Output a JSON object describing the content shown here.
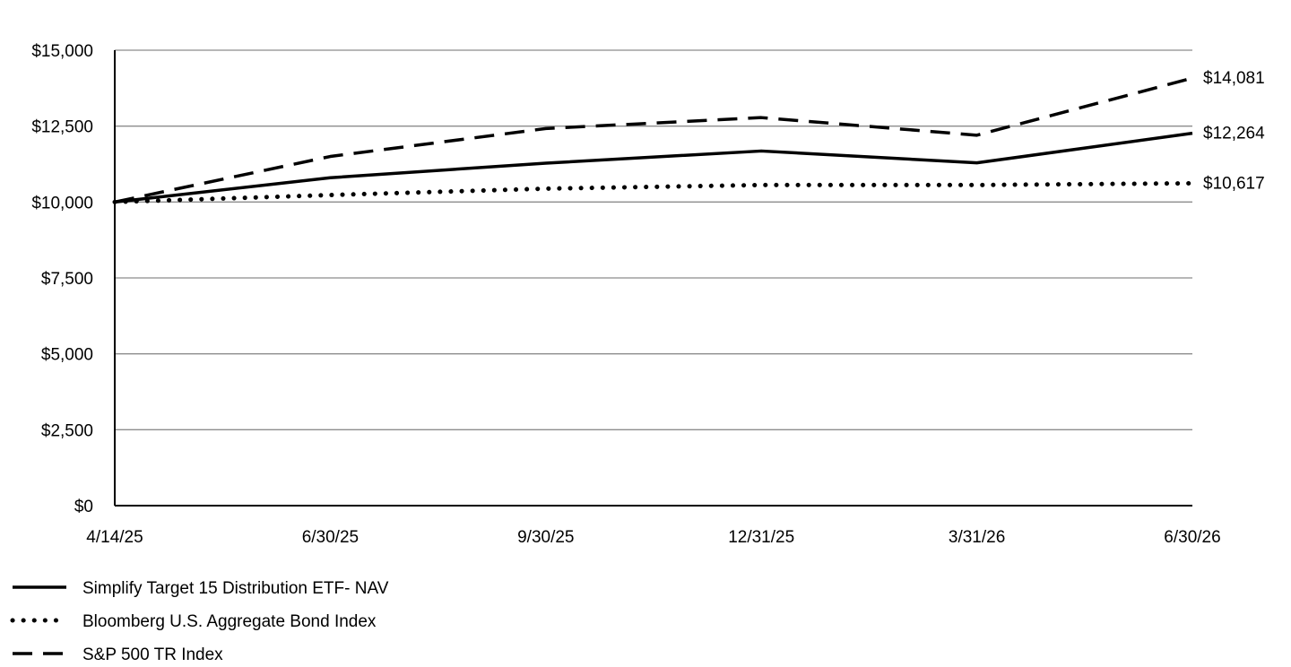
{
  "chart_data": {
    "type": "line",
    "title": "",
    "xlabel": "",
    "ylabel": "",
    "x": [
      "4/14/25",
      "6/30/25",
      "9/30/25",
      "12/31/25",
      "3/31/26",
      "6/30/26"
    ],
    "ylim": [
      0,
      15000
    ],
    "yticks": [
      0,
      2500,
      5000,
      7500,
      10000,
      12500,
      15000
    ],
    "ytick_labels": [
      "$0",
      "$2,500",
      "$5,000",
      "$7,500",
      "$10,000",
      "$12,500",
      "$15,000"
    ],
    "grid": true,
    "legend_position": "bottom-left",
    "series": [
      {
        "name": "Simplify Target 15 Distribution ETF- NAV",
        "style": "solid",
        "color": "#000000",
        "values": [
          10000,
          10800,
          11280,
          11680,
          11290,
          12264
        ],
        "end_label": "$12,264"
      },
      {
        "name": "Bloomberg U.S. Aggregate Bond Index",
        "style": "dotted",
        "color": "#000000",
        "values": [
          10000,
          10230,
          10440,
          10560,
          10560,
          10617
        ],
        "end_label": "$10,617"
      },
      {
        "name": "S&P 500 TR Index",
        "style": "dashed",
        "color": "#000000",
        "values": [
          10000,
          11500,
          12420,
          12780,
          12200,
          14081
        ],
        "end_label": "$14,081"
      }
    ]
  }
}
